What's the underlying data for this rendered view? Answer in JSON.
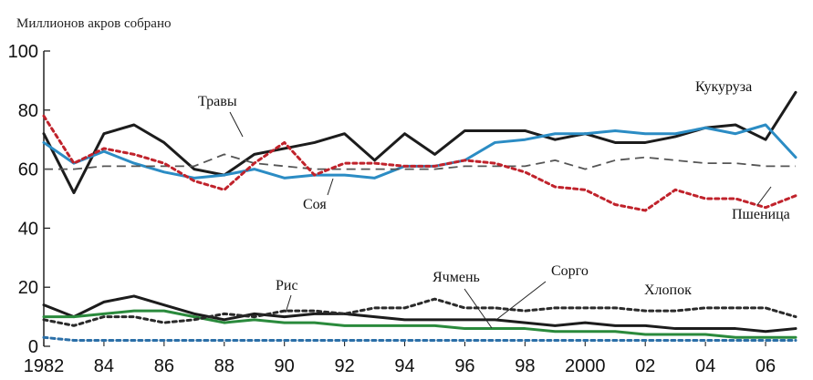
{
  "chart_data": {
    "type": "line",
    "ylabel": "Миллионов акров собрано",
    "ylim": [
      0,
      100
    ],
    "yticks": [
      "0",
      "20",
      "40",
      "60",
      "80",
      "100"
    ],
    "xlim": [
      1982,
      2007
    ],
    "x": [
      1982,
      1983,
      1984,
      1985,
      1986,
      1987,
      1988,
      1989,
      1990,
      1991,
      1992,
      1993,
      1994,
      1995,
      1996,
      1997,
      1998,
      1999,
      2000,
      2001,
      2002,
      2003,
      2004,
      2005,
      2006,
      2007
    ],
    "xticks": [
      {
        "x": 1982,
        "label": "1982"
      },
      {
        "x": 1984,
        "label": "84"
      },
      {
        "x": 1986,
        "label": "86"
      },
      {
        "x": 1988,
        "label": "88"
      },
      {
        "x": 1990,
        "label": "90"
      },
      {
        "x": 1992,
        "label": "92"
      },
      {
        "x": 1994,
        "label": "94"
      },
      {
        "x": 1996,
        "label": "96"
      },
      {
        "x": 1998,
        "label": "98"
      },
      {
        "x": 2000,
        "label": "2000"
      },
      {
        "x": 2002,
        "label": "02"
      },
      {
        "x": 2004,
        "label": "04"
      },
      {
        "x": 2006,
        "label": "06"
      }
    ],
    "grid": false,
    "legend": "labels placed next to lines",
    "series": [
      {
        "name": "Кукуруза",
        "color": "#1c1c1c",
        "style": "solid",
        "values": [
          72,
          52,
          72,
          75,
          69,
          60,
          58,
          65,
          67,
          69,
          72,
          63,
          72,
          65,
          73,
          73,
          73,
          70,
          72,
          69,
          69,
          71,
          74,
          75,
          70,
          86
        ]
      },
      {
        "name": "Соя",
        "color": "#2b8cc4",
        "style": "solid",
        "values": [
          69,
          62,
          66,
          62,
          59,
          57,
          58,
          60,
          57,
          58,
          58,
          57,
          61,
          61,
          63,
          69,
          70,
          72,
          72,
          73,
          72,
          72,
          74,
          72,
          75,
          64
        ]
      },
      {
        "name": "Травы",
        "color": "#555555",
        "style": "dashed",
        "values": [
          60,
          60,
          61,
          61,
          61,
          61,
          65,
          62,
          61,
          60,
          60,
          60,
          60,
          60,
          61,
          61,
          61,
          63,
          60,
          63,
          64,
          63,
          62,
          62,
          61,
          61
        ]
      },
      {
        "name": "Пшеница",
        "color": "#c0222b",
        "style": "dotted",
        "values": [
          78,
          62,
          67,
          65,
          62,
          56,
          53,
          62,
          69,
          58,
          62,
          62,
          61,
          61,
          63,
          62,
          59,
          54,
          53,
          48,
          46,
          53,
          50,
          50,
          47,
          51
        ]
      },
      {
        "name": "Рис",
        "color": "#1c1c1c",
        "style": "solid",
        "values": [
          14,
          10,
          15,
          17,
          14,
          11,
          9,
          11,
          10,
          11,
          11,
          10,
          9,
          9,
          9,
          9,
          8,
          7,
          8,
          7,
          7,
          6,
          6,
          6,
          5,
          6
        ]
      },
      {
        "name": "Ячмень",
        "color": "#2a8a3c",
        "style": "solid",
        "values": [
          10,
          10,
          11,
          12,
          12,
          10,
          8,
          9,
          8,
          8,
          7,
          7,
          7,
          7,
          6,
          6,
          6,
          5,
          5,
          5,
          4,
          4,
          4,
          3,
          3,
          3
        ]
      },
      {
        "name": "Хлопок",
        "color": "#2a2a2a",
        "style": "dotted",
        "values": [
          9,
          7,
          10,
          10,
          8,
          9,
          11,
          10,
          12,
          12,
          11,
          13,
          13,
          16,
          13,
          13,
          12,
          13,
          13,
          13,
          12,
          12,
          13,
          13,
          13,
          10
        ]
      },
      {
        "name": "Сорго",
        "color": "#2b6fa8",
        "style": "dotted",
        "values": [
          3,
          2,
          2,
          2,
          2,
          2,
          2,
          2,
          2,
          2,
          2,
          2,
          2,
          2,
          2,
          2,
          2,
          2,
          2,
          2,
          2,
          2,
          2,
          2,
          2,
          2
        ]
      }
    ]
  }
}
